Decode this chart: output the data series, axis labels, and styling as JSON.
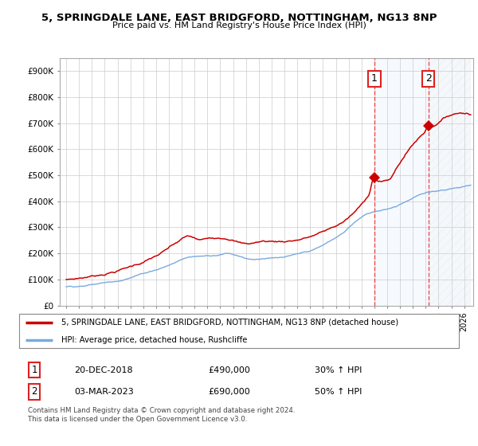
{
  "title": "5, SPRINGDALE LANE, EAST BRIDGFORD, NOTTINGHAM, NG13 8NP",
  "subtitle": "Price paid vs. HM Land Registry's House Price Index (HPI)",
  "legend_line1": "5, SPRINGDALE LANE, EAST BRIDGFORD, NOTTINGHAM, NG13 8NP (detached house)",
  "legend_line2": "HPI: Average price, detached house, Rushcliffe",
  "annotation1_date": "20-DEC-2018",
  "annotation1_price": "£490,000",
  "annotation1_hpi": "30% ↑ HPI",
  "annotation2_date": "03-MAR-2023",
  "annotation2_price": "£690,000",
  "annotation2_hpi": "50% ↑ HPI",
  "footer": "Contains HM Land Registry data © Crown copyright and database right 2024.\nThis data is licensed under the Open Government Licence v3.0.",
  "house_color": "#cc0000",
  "hpi_color": "#7aaadd",
  "highlight_color": "#ddeeff",
  "vline_color": "#ee3333",
  "ylim": [
    0,
    950000
  ],
  "yticks": [
    0,
    100000,
    200000,
    300000,
    400000,
    500000,
    600000,
    700000,
    800000,
    900000
  ],
  "ytick_labels": [
    "£0",
    "£100K",
    "£200K",
    "£300K",
    "£400K",
    "£500K",
    "£600K",
    "£700K",
    "£800K",
    "£900K"
  ],
  "sale1_year": 2019.0,
  "sale2_year": 2023.2,
  "sale1_price": 490000,
  "sale2_price": 690000,
  "num_box_color": "#dd2222"
}
